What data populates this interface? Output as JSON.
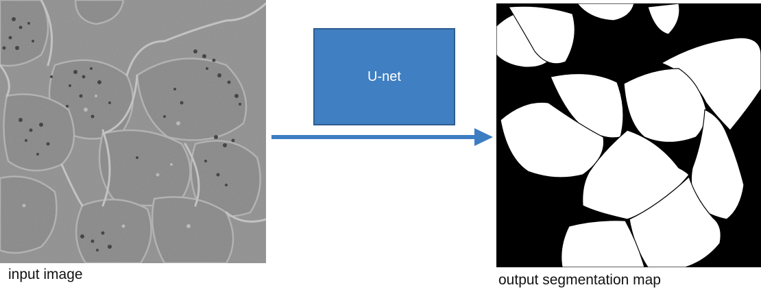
{
  "diagram": {
    "input_caption": "input image",
    "model_label": "U-net",
    "output_caption": "output segmentation map"
  },
  "colors": {
    "model_box_fill": "#3f7fc2",
    "model_box_border": "#2e5d8f",
    "arrow": "#3d7dc2",
    "micrograph_background": "#8b8b8b",
    "segmentation_background": "#000000",
    "segmentation_cells": "#ffffff"
  }
}
